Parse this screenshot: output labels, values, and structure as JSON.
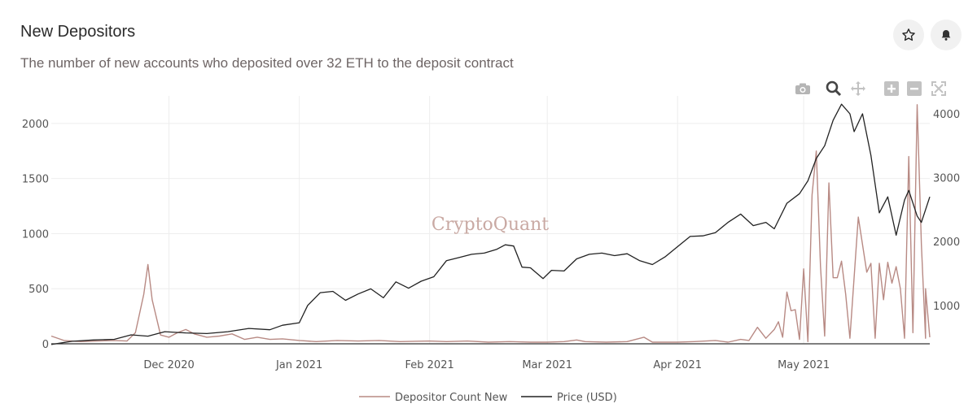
{
  "header": {
    "title": "New Depositors",
    "subtitle": "The number of new accounts who deposited over 32 ETH to the deposit contract"
  },
  "actions": {
    "star_icon": "star-icon",
    "bell_icon": "bell-icon"
  },
  "toolbar_icons": [
    "camera-icon",
    "zoom-icon",
    "pan-icon",
    "zoom-in-icon",
    "zoom-out-icon",
    "autoscale-icon"
  ],
  "watermark": "CryptoQuant",
  "colors": {
    "depositors": "#b88a84",
    "price": "#222222",
    "grid": "#eeeeee"
  },
  "chart_data": {
    "type": "line",
    "x_range": [
      "2020-11-03",
      "2021-05-31"
    ],
    "x_ticks": [
      {
        "date": "2020-12-01",
        "label": "Dec 2020"
      },
      {
        "date": "2021-01-01",
        "label": "Jan 2021"
      },
      {
        "date": "2021-02-01",
        "label": "Feb 2021"
      },
      {
        "date": "2021-03-01",
        "label": "Mar 2021"
      },
      {
        "date": "2021-04-01",
        "label": "Apr 2021"
      },
      {
        "date": "2021-05-01",
        "label": "May 2021"
      }
    ],
    "y_left": {
      "range": [
        0,
        2250
      ],
      "ticks": [
        0,
        500,
        1000,
        1500,
        2000
      ]
    },
    "y_right": {
      "range": [
        400,
        4280
      ],
      "ticks": [
        1000,
        2000,
        3000,
        4000
      ]
    },
    "grid": true,
    "legend": "bottom",
    "series": [
      {
        "name": "Depositor Count New",
        "axis": "left",
        "points": [
          [
            "2020-11-03",
            70
          ],
          [
            "2020-11-06",
            30
          ],
          [
            "2020-11-10",
            20
          ],
          [
            "2020-11-14",
            25
          ],
          [
            "2020-11-18",
            30
          ],
          [
            "2020-11-21",
            25
          ],
          [
            "2020-11-23",
            100
          ],
          [
            "2020-11-25",
            450
          ],
          [
            "2020-11-26",
            720
          ],
          [
            "2020-11-27",
            400
          ],
          [
            "2020-11-29",
            80
          ],
          [
            "2020-12-01",
            60
          ],
          [
            "2020-12-03",
            100
          ],
          [
            "2020-12-05",
            130
          ],
          [
            "2020-12-07",
            90
          ],
          [
            "2020-12-10",
            60
          ],
          [
            "2020-12-13",
            70
          ],
          [
            "2020-12-16",
            90
          ],
          [
            "2020-12-19",
            40
          ],
          [
            "2020-12-22",
            60
          ],
          [
            "2020-12-25",
            40
          ],
          [
            "2020-12-28",
            45
          ],
          [
            "2021-01-01",
            30
          ],
          [
            "2021-01-05",
            20
          ],
          [
            "2021-01-10",
            30
          ],
          [
            "2021-01-15",
            25
          ],
          [
            "2021-01-20",
            30
          ],
          [
            "2021-01-25",
            20
          ],
          [
            "2021-02-01",
            25
          ],
          [
            "2021-02-05",
            20
          ],
          [
            "2021-02-10",
            25
          ],
          [
            "2021-02-15",
            15
          ],
          [
            "2021-02-20",
            20
          ],
          [
            "2021-02-25",
            15
          ],
          [
            "2021-03-01",
            15
          ],
          [
            "2021-03-05",
            20
          ],
          [
            "2021-03-08",
            35
          ],
          [
            "2021-03-10",
            20
          ],
          [
            "2021-03-15",
            15
          ],
          [
            "2021-03-20",
            20
          ],
          [
            "2021-03-24",
            60
          ],
          [
            "2021-03-26",
            15
          ],
          [
            "2021-04-01",
            15
          ],
          [
            "2021-04-05",
            20
          ],
          [
            "2021-04-10",
            30
          ],
          [
            "2021-04-13",
            15
          ],
          [
            "2021-04-16",
            40
          ],
          [
            "2021-04-18",
            30
          ],
          [
            "2021-04-20",
            150
          ],
          [
            "2021-04-22",
            50
          ],
          [
            "2021-04-24",
            130
          ],
          [
            "2021-04-25",
            200
          ],
          [
            "2021-04-26",
            60
          ],
          [
            "2021-04-27",
            470
          ],
          [
            "2021-04-28",
            300
          ],
          [
            "2021-04-29",
            310
          ],
          [
            "2021-04-30",
            40
          ],
          [
            "2021-05-01",
            680
          ],
          [
            "2021-05-02",
            20
          ],
          [
            "2021-05-03",
            1350
          ],
          [
            "2021-05-04",
            1750
          ],
          [
            "2021-05-05",
            700
          ],
          [
            "2021-05-06",
            70
          ],
          [
            "2021-05-07",
            1460
          ],
          [
            "2021-05-08",
            600
          ],
          [
            "2021-05-09",
            600
          ],
          [
            "2021-05-10",
            750
          ],
          [
            "2021-05-11",
            450
          ],
          [
            "2021-05-12",
            50
          ],
          [
            "2021-05-14",
            1150
          ],
          [
            "2021-05-16",
            650
          ],
          [
            "2021-05-17",
            730
          ],
          [
            "2021-05-18",
            50
          ],
          [
            "2021-05-19",
            730
          ],
          [
            "2021-05-20",
            400
          ],
          [
            "2021-05-21",
            740
          ],
          [
            "2021-05-22",
            550
          ],
          [
            "2021-05-23",
            700
          ],
          [
            "2021-05-24",
            500
          ],
          [
            "2021-05-25",
            50
          ],
          [
            "2021-05-26",
            1700
          ],
          [
            "2021-05-27",
            100
          ],
          [
            "2021-05-28",
            2170
          ],
          [
            "2021-05-29",
            900
          ],
          [
            "2021-05-30",
            50
          ],
          [
            "2021-05-30",
            500
          ],
          [
            "2021-05-31",
            60
          ]
        ]
      },
      {
        "name": "Price (USD)",
        "axis": "right",
        "points": [
          [
            "2020-11-03",
            390
          ],
          [
            "2020-11-08",
            440
          ],
          [
            "2020-11-13",
            460
          ],
          [
            "2020-11-18",
            470
          ],
          [
            "2020-11-22",
            540
          ],
          [
            "2020-11-26",
            520
          ],
          [
            "2020-11-30",
            590
          ],
          [
            "2020-12-05",
            570
          ],
          [
            "2020-12-10",
            560
          ],
          [
            "2020-12-15",
            590
          ],
          [
            "2020-12-20",
            640
          ],
          [
            "2020-12-25",
            620
          ],
          [
            "2020-12-28",
            690
          ],
          [
            "2021-01-01",
            730
          ],
          [
            "2021-01-03",
            1000
          ],
          [
            "2021-01-06",
            1200
          ],
          [
            "2021-01-09",
            1220
          ],
          [
            "2021-01-12",
            1080
          ],
          [
            "2021-01-15",
            1180
          ],
          [
            "2021-01-18",
            1260
          ],
          [
            "2021-01-21",
            1120
          ],
          [
            "2021-01-24",
            1370
          ],
          [
            "2021-01-27",
            1270
          ],
          [
            "2021-01-30",
            1380
          ],
          [
            "2021-02-02",
            1450
          ],
          [
            "2021-02-05",
            1700
          ],
          [
            "2021-02-08",
            1750
          ],
          [
            "2021-02-11",
            1800
          ],
          [
            "2021-02-14",
            1820
          ],
          [
            "2021-02-17",
            1880
          ],
          [
            "2021-02-19",
            1950
          ],
          [
            "2021-02-21",
            1930
          ],
          [
            "2021-02-23",
            1600
          ],
          [
            "2021-02-25",
            1590
          ],
          [
            "2021-02-28",
            1420
          ],
          [
            "2021-03-02",
            1550
          ],
          [
            "2021-03-05",
            1540
          ],
          [
            "2021-03-08",
            1730
          ],
          [
            "2021-03-11",
            1800
          ],
          [
            "2021-03-14",
            1820
          ],
          [
            "2021-03-17",
            1780
          ],
          [
            "2021-03-20",
            1810
          ],
          [
            "2021-03-23",
            1700
          ],
          [
            "2021-03-26",
            1640
          ],
          [
            "2021-03-29",
            1760
          ],
          [
            "2021-04-01",
            1920
          ],
          [
            "2021-04-04",
            2080
          ],
          [
            "2021-04-07",
            2090
          ],
          [
            "2021-04-10",
            2140
          ],
          [
            "2021-04-13",
            2300
          ],
          [
            "2021-04-16",
            2430
          ],
          [
            "2021-04-19",
            2250
          ],
          [
            "2021-04-22",
            2300
          ],
          [
            "2021-04-24",
            2200
          ],
          [
            "2021-04-27",
            2600
          ],
          [
            "2021-04-30",
            2750
          ],
          [
            "2021-05-02",
            2950
          ],
          [
            "2021-05-04",
            3300
          ],
          [
            "2021-05-06",
            3500
          ],
          [
            "2021-05-08",
            3900
          ],
          [
            "2021-05-10",
            4150
          ],
          [
            "2021-05-12",
            4000
          ],
          [
            "2021-05-13",
            3720
          ],
          [
            "2021-05-15",
            4000
          ],
          [
            "2021-05-17",
            3350
          ],
          [
            "2021-05-19",
            2450
          ],
          [
            "2021-05-21",
            2700
          ],
          [
            "2021-05-23",
            2100
          ],
          [
            "2021-05-25",
            2650
          ],
          [
            "2021-05-26",
            2800
          ],
          [
            "2021-05-28",
            2400
          ],
          [
            "2021-05-29",
            2300
          ],
          [
            "2021-05-31",
            2700
          ]
        ]
      }
    ]
  }
}
